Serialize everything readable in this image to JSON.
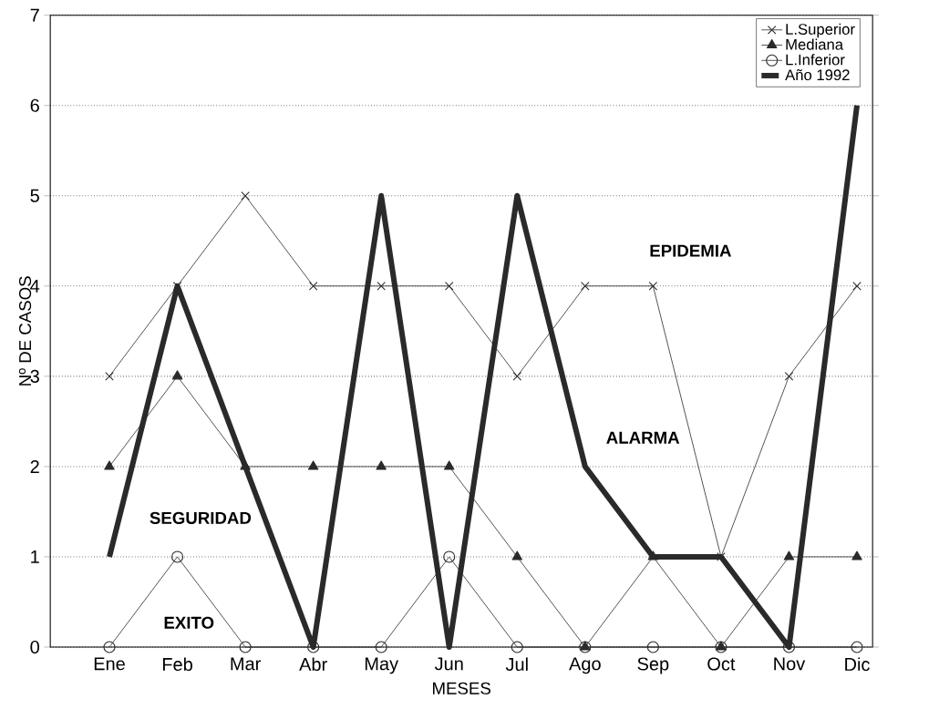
{
  "chart_data": {
    "type": "line",
    "xlabel": "MESES",
    "ylabel": "Nº DE CASOS",
    "categories": [
      "Ene",
      "Feb",
      "Mar",
      "Abr",
      "May",
      "Jun",
      "Jul",
      "Ago",
      "Sep",
      "Oct",
      "Nov",
      "Dic"
    ],
    "series": [
      {
        "name": "L.Superior",
        "color": "#2a2a2a",
        "marker": "cross",
        "values": [
          3,
          4,
          5,
          4,
          4,
          4,
          3,
          4,
          4,
          1,
          3,
          4
        ]
      },
      {
        "name": "Mediana",
        "color": "#2a2a2a",
        "marker": "triangle",
        "values": [
          2,
          3,
          2,
          2,
          2,
          2,
          1,
          0,
          1,
          0,
          1,
          1
        ]
      },
      {
        "name": "L.Inferior",
        "color": "#2a2a2a",
        "marker": "circle",
        "values": [
          0,
          1,
          0,
          0,
          0,
          1,
          0,
          0,
          0,
          0,
          0,
          0
        ]
      },
      {
        "name": "Año 1992",
        "color": "#2a2a2a",
        "marker": "none",
        "values": [
          1,
          4,
          2,
          0,
          5,
          0,
          5,
          2,
          1,
          1,
          0,
          6
        ]
      }
    ],
    "ylim": [
      0,
      7
    ],
    "yticks": [
      0,
      1,
      2,
      3,
      4,
      5,
      6,
      7
    ],
    "grid": "y",
    "legend": "top right",
    "line_style": "solid",
    "annotations": [
      "EPIDEMIA",
      "ALARMA",
      "SEGURIDAD",
      "EXITO"
    ]
  }
}
